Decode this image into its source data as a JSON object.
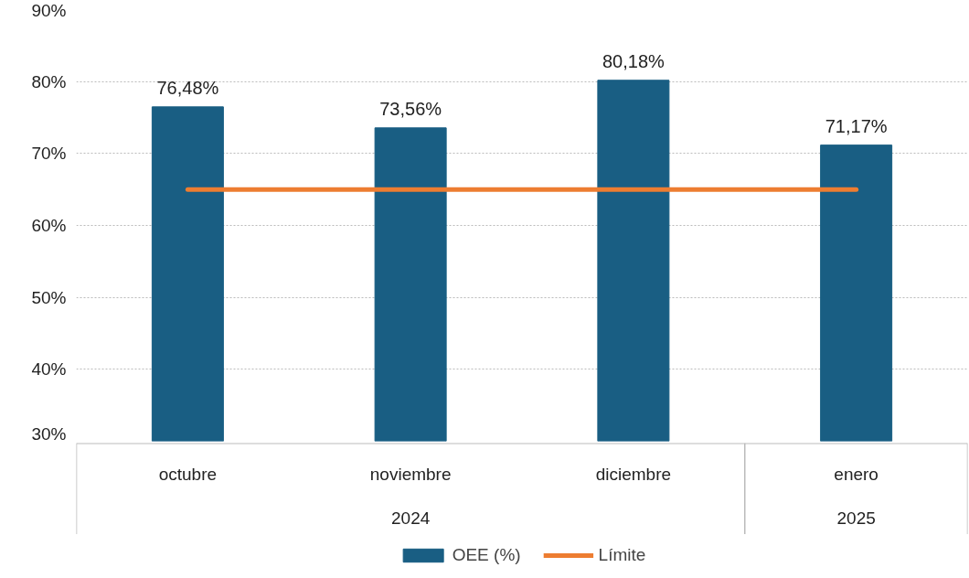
{
  "chart_data": {
    "type": "bar",
    "categories": [
      "octubre",
      "noviembre",
      "diciembre",
      "enero"
    ],
    "series": [
      {
        "name": "OEE (%)",
        "color": "#195e83",
        "values": [
          76.48,
          73.56,
          80.18,
          71.17
        ],
        "value_labels": [
          "76,48%",
          "73,56%",
          "80,18%",
          "71,17%"
        ]
      },
      {
        "name": "Límite",
        "type": "line",
        "color": "#ed7d31",
        "values": [
          65,
          65,
          65,
          65
        ]
      }
    ],
    "ylim": [
      30,
      90
    ],
    "yticks": [
      {
        "value": 30,
        "label": "30%"
      },
      {
        "value": 40,
        "label": "40%"
      },
      {
        "value": 50,
        "label": "50%"
      },
      {
        "value": 60,
        "label": "60%"
      },
      {
        "value": 70,
        "label": "70%"
      },
      {
        "value": 80,
        "label": "80%"
      },
      {
        "value": 90,
        "label": "90%"
      }
    ],
    "annotations": [
      "2024",
      "2025"
    ],
    "grid": "y",
    "legend": "bottom"
  }
}
